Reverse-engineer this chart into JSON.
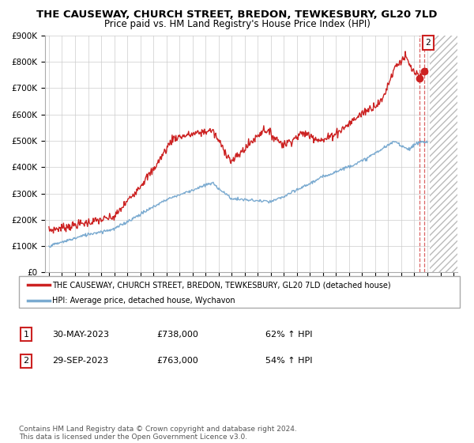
{
  "title": "THE CAUSEWAY, CHURCH STREET, BREDON, TEWKESBURY, GL20 7LD",
  "subtitle": "Price paid vs. HM Land Registry's House Price Index (HPI)",
  "legend_line1": "THE CAUSEWAY, CHURCH STREET, BREDON, TEWKESBURY, GL20 7LD (detached house)",
  "legend_line2": "HPI: Average price, detached house, Wychavon",
  "table_row1": [
    "1",
    "30-MAY-2023",
    "£738,000",
    "62% ↑ HPI"
  ],
  "table_row2": [
    "2",
    "29-SEP-2023",
    "£763,000",
    "54% ↑ HPI"
  ],
  "footnote": "Contains HM Land Registry data © Crown copyright and database right 2024.\nThis data is licensed under the Open Government Licence v3.0.",
  "red_color": "#cc2222",
  "blue_color": "#7aaad0",
  "ylim": [
    0,
    900000
  ],
  "yticks": [
    0,
    100000,
    200000,
    300000,
    400000,
    500000,
    600000,
    700000,
    800000,
    900000
  ],
  "ytick_labels": [
    "£0",
    "£100K",
    "£200K",
    "£300K",
    "£400K",
    "£500K",
    "£600K",
    "£700K",
    "£800K",
    "£900K"
  ],
  "xlim_start": 1994.7,
  "xlim_end": 2026.3,
  "marker1_x": 2023.41,
  "marker1_y": 738000,
  "marker2_x": 2023.75,
  "marker2_y": 763000,
  "future_start": 2024.2
}
